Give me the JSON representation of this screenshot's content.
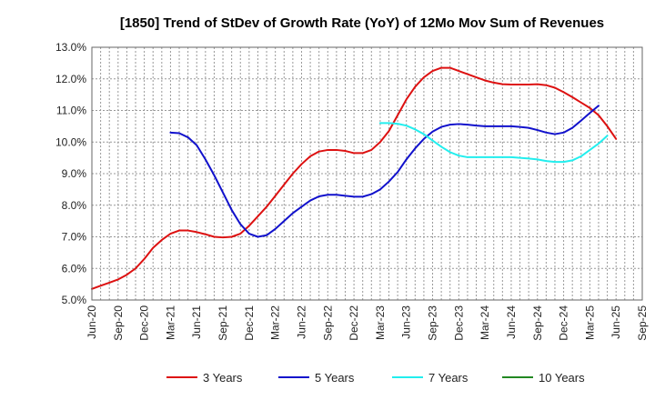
{
  "chart_data": {
    "type": "line",
    "title": "[1850]  Trend of StDev of Growth Rate (YoY) of 12Mo Mov Sum of Revenues",
    "xlabel": "",
    "ylabel": "",
    "ylim": [
      5.0,
      13.0
    ],
    "y_ticks": [
      "5.0%",
      "6.0%",
      "7.0%",
      "8.0%",
      "9.0%",
      "10.0%",
      "11.0%",
      "12.0%",
      "13.0%"
    ],
    "x_ticks": [
      "Jun-20",
      "Sep-20",
      "Dec-20",
      "Mar-21",
      "Jun-21",
      "Sep-21",
      "Dec-21",
      "Mar-22",
      "Jun-22",
      "Sep-22",
      "Dec-22",
      "Mar-23",
      "Jun-23",
      "Sep-23",
      "Dec-23",
      "Mar-24",
      "Jun-24",
      "Sep-24",
      "Dec-24",
      "Mar-25",
      "Jun-25",
      "Sep-25"
    ],
    "grid": true,
    "legend_position": "bottom",
    "series": [
      {
        "name": "3 Years",
        "color": "#dd1111",
        "start_index": 0,
        "values": [
          5.35,
          5.45,
          5.55,
          5.65,
          5.8,
          6.0,
          6.3,
          6.65,
          6.9,
          7.1,
          7.2,
          7.2,
          7.15,
          7.08,
          7.0,
          6.98,
          7.0,
          7.1,
          7.35,
          7.65,
          7.95,
          8.3,
          8.65,
          9.0,
          9.3,
          9.55,
          9.7,
          9.75,
          9.75,
          9.72,
          9.65,
          9.65,
          9.75,
          10.0,
          10.35,
          10.85,
          11.35,
          11.75,
          12.05,
          12.25,
          12.35,
          12.35,
          12.25,
          12.15,
          12.05,
          11.95,
          11.88,
          11.83,
          11.82,
          11.82,
          11.82,
          11.83,
          11.8,
          11.72,
          11.58,
          11.42,
          11.25,
          11.08,
          10.85,
          10.5,
          10.1
        ]
      },
      {
        "name": "5 Years",
        "color": "#1111cc",
        "start_index": 9,
        "values": [
          10.3,
          10.28,
          10.15,
          9.9,
          9.45,
          8.95,
          8.4,
          7.85,
          7.4,
          7.1,
          7.0,
          7.05,
          7.25,
          7.5,
          7.75,
          7.95,
          8.15,
          8.28,
          8.33,
          8.33,
          8.3,
          8.27,
          8.27,
          8.35,
          8.5,
          8.75,
          9.05,
          9.45,
          9.8,
          10.1,
          10.33,
          10.48,
          10.55,
          10.57,
          10.55,
          10.52,
          10.5,
          10.5,
          10.5,
          10.5,
          10.48,
          10.45,
          10.38,
          10.3,
          10.25,
          10.3,
          10.45,
          10.68,
          10.92,
          11.15
        ]
      },
      {
        "name": "7 Years",
        "color": "#22eeee",
        "start_index": 33,
        "values": [
          10.6,
          10.6,
          10.58,
          10.52,
          10.4,
          10.25,
          10.05,
          9.85,
          9.68,
          9.57,
          9.52,
          9.52,
          9.52,
          9.52,
          9.52,
          9.52,
          9.5,
          9.48,
          9.45,
          9.4,
          9.37,
          9.37,
          9.42,
          9.55,
          9.75,
          9.95,
          10.2
        ]
      },
      {
        "name": "10 Years",
        "color": "#228822",
        "start_index": 0,
        "values": []
      }
    ]
  }
}
